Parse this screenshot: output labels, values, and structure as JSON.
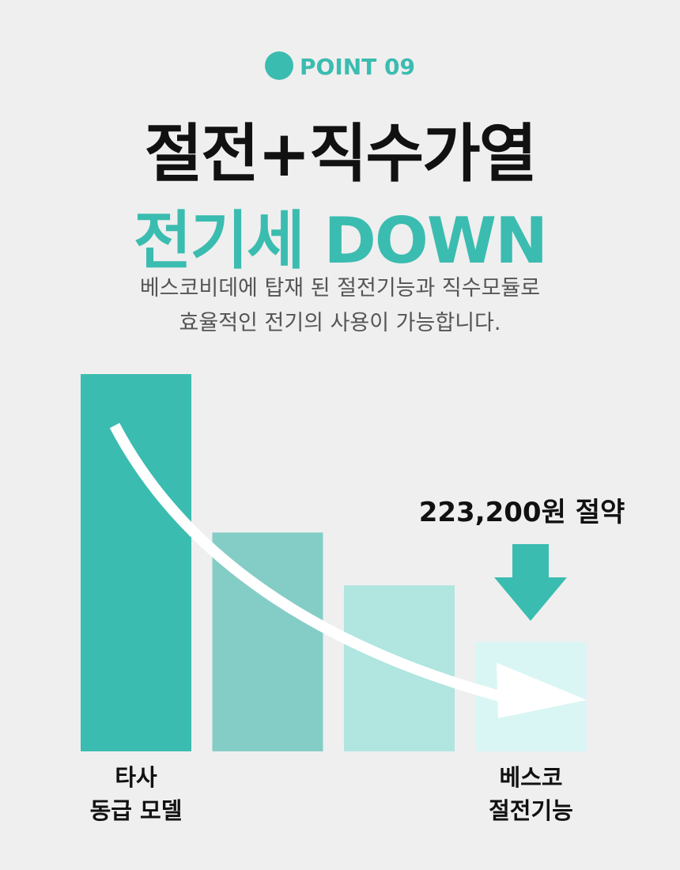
{
  "header": {
    "badge": "POINT 09",
    "title": "절전+직수가열",
    "title_highlight": "전기세 DOWN",
    "description": [
      "베스코비데에 탑재 된 절전기능과 직수모듈로",
      "효율적인 전기의 사용이 가능합니다."
    ]
  },
  "chart_data": {
    "type": "bar",
    "categories": [
      "타사\n동급 모델",
      null,
      null,
      "베스코\n절전기능"
    ],
    "values": [
      100,
      58,
      44,
      29
    ],
    "colors": [
      "#3bbcb0",
      "#84cdc6",
      "#b0e5e0",
      "#d9f6f4"
    ],
    "ylim": [
      0,
      100
    ],
    "annotation": "223,200원 절약"
  }
}
